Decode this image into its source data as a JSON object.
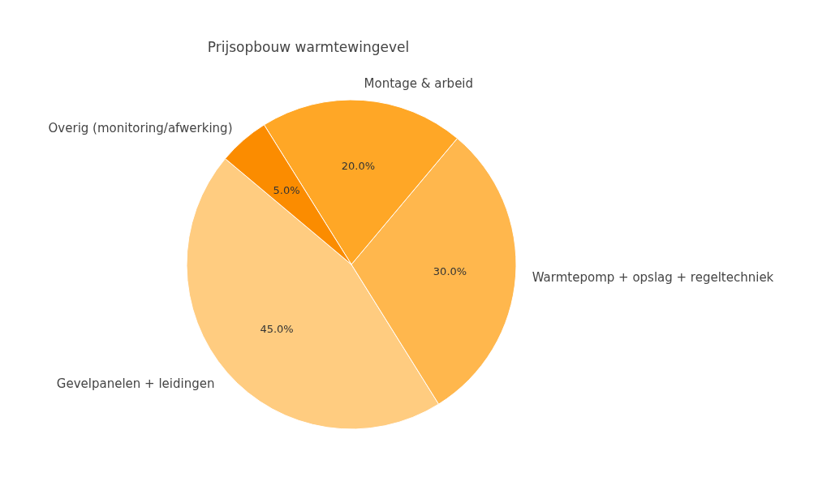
{
  "chart_data": {
    "type": "pie",
    "title": "Prijsopbouw warmtewingevel",
    "categories": [
      "Gevelpanelen + leidingen",
      "Warmtepomp + opslag + regeltechniek",
      "Montage & arbeid",
      "Overig (monitoring/afwerking)"
    ],
    "values": [
      45,
      30,
      20,
      5
    ],
    "value_labels": [
      "45.0%",
      "30.0%",
      "20.0%",
      "5.0%"
    ],
    "colors": [
      "#ffcc80",
      "#ffb74d",
      "#ffa726",
      "#fb8c00"
    ]
  }
}
